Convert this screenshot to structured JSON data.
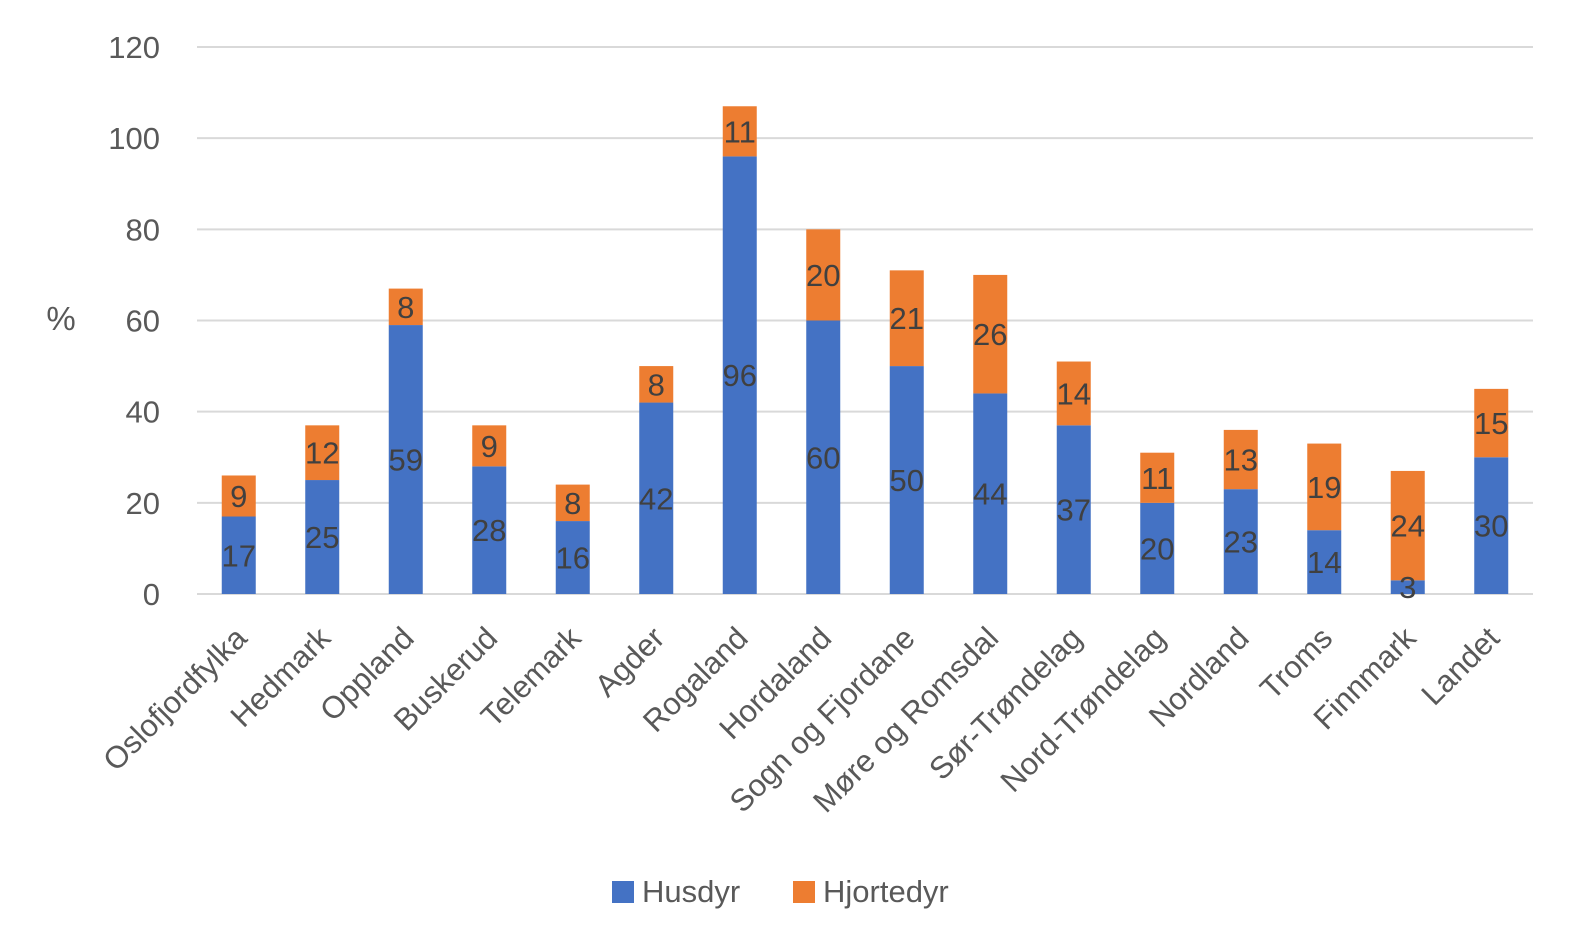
{
  "chart_data": {
    "type": "bar",
    "stacked": true,
    "ylabel": "%",
    "ylim": [
      0,
      120
    ],
    "yticks": [
      0,
      20,
      40,
      60,
      80,
      100,
      120
    ],
    "grid": true,
    "legend_position": "bottom",
    "categories": [
      "Oslofjordfylka",
      "Hedmark",
      "Oppland",
      "Buskerud",
      "Telemark",
      "Agder",
      "Rogaland",
      "Hordaland",
      "Sogn og Fjordane",
      "Møre og Romsdal",
      "Sør-Trøndelag",
      "Nord-Trøndelag",
      "Nordland",
      "Troms",
      "Finnmark",
      "Landet"
    ],
    "series": [
      {
        "name": "Husdyr",
        "color": "#4472C4",
        "values": [
          17,
          25,
          59,
          28,
          16,
          42,
          96,
          60,
          50,
          44,
          37,
          20,
          23,
          14,
          3,
          30
        ]
      },
      {
        "name": "Hjortedyr",
        "color": "#ED7D31",
        "values": [
          9,
          12,
          8,
          9,
          8,
          8,
          11,
          20,
          21,
          26,
          14,
          11,
          13,
          19,
          24,
          15
        ]
      }
    ]
  }
}
